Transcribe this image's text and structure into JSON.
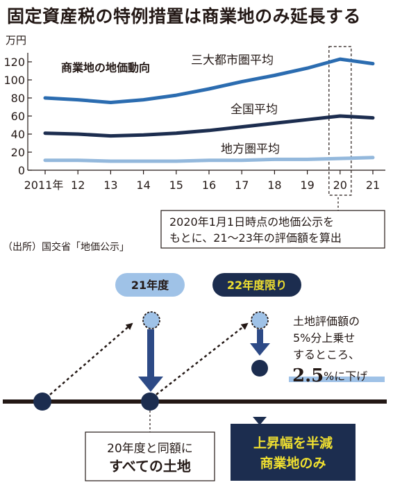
{
  "headline": "固定資産税の特例措置は商業地のみ延長する",
  "chart_data": {
    "type": "line",
    "title": "商業地の地価動向",
    "ylabel": "万円",
    "ylim": [
      0,
      130
    ],
    "yticks": [
      0,
      20,
      40,
      60,
      80,
      100,
      120
    ],
    "x": [
      2011,
      2012,
      2013,
      2014,
      2015,
      2016,
      2017,
      2018,
      2019,
      2020,
      2021
    ],
    "x_tick_labels": [
      "2011年",
      "12",
      "13",
      "14",
      "15",
      "16",
      "17",
      "18",
      "19",
      "20",
      "21"
    ],
    "highlight_x": 2020,
    "series": [
      {
        "name": "三大都市圏平均",
        "color": "#2b6cb0",
        "values": [
          80,
          78,
          75,
          78,
          83,
          90,
          98,
          105,
          113,
          123,
          118
        ]
      },
      {
        "name": "全国平均",
        "color": "#1c2d4f",
        "values": [
          41,
          40,
          38,
          39,
          41,
          44,
          48,
          52,
          56,
          60,
          58
        ]
      },
      {
        "name": "地方圏平均",
        "color": "#93b8dc",
        "values": [
          11,
          11,
          10,
          10,
          10,
          11,
          11,
          12,
          12,
          13,
          14
        ]
      }
    ],
    "annotation": [
      "2020年1月1日時点の地価公示を",
      "もとに、21～23年の評価額を算出"
    ],
    "source": "（出所）国交省「地価公示」"
  },
  "diagram": {
    "label_fy21": "21年度",
    "label_fy22": "22年度限り",
    "note_lines": [
      "土地評価額の",
      "5%分上乗せ",
      "するところ、"
    ],
    "note_big": "2.5",
    "note_suffix": "%に下げ",
    "all_land_line1": "20年度と同額に",
    "all_land_line2": "すべての土地",
    "commercial_line1": "上昇幅を半減",
    "commercial_line2": "商業地のみ"
  },
  "colors": {
    "navy": "#1c2d4f",
    "mid_blue": "#2b6cb0",
    "light_blue": "#93b8dc",
    "pill_blue": "#9fc2e7",
    "dark_bg": "#1c2d4f",
    "accent_text": "#f0e030"
  }
}
